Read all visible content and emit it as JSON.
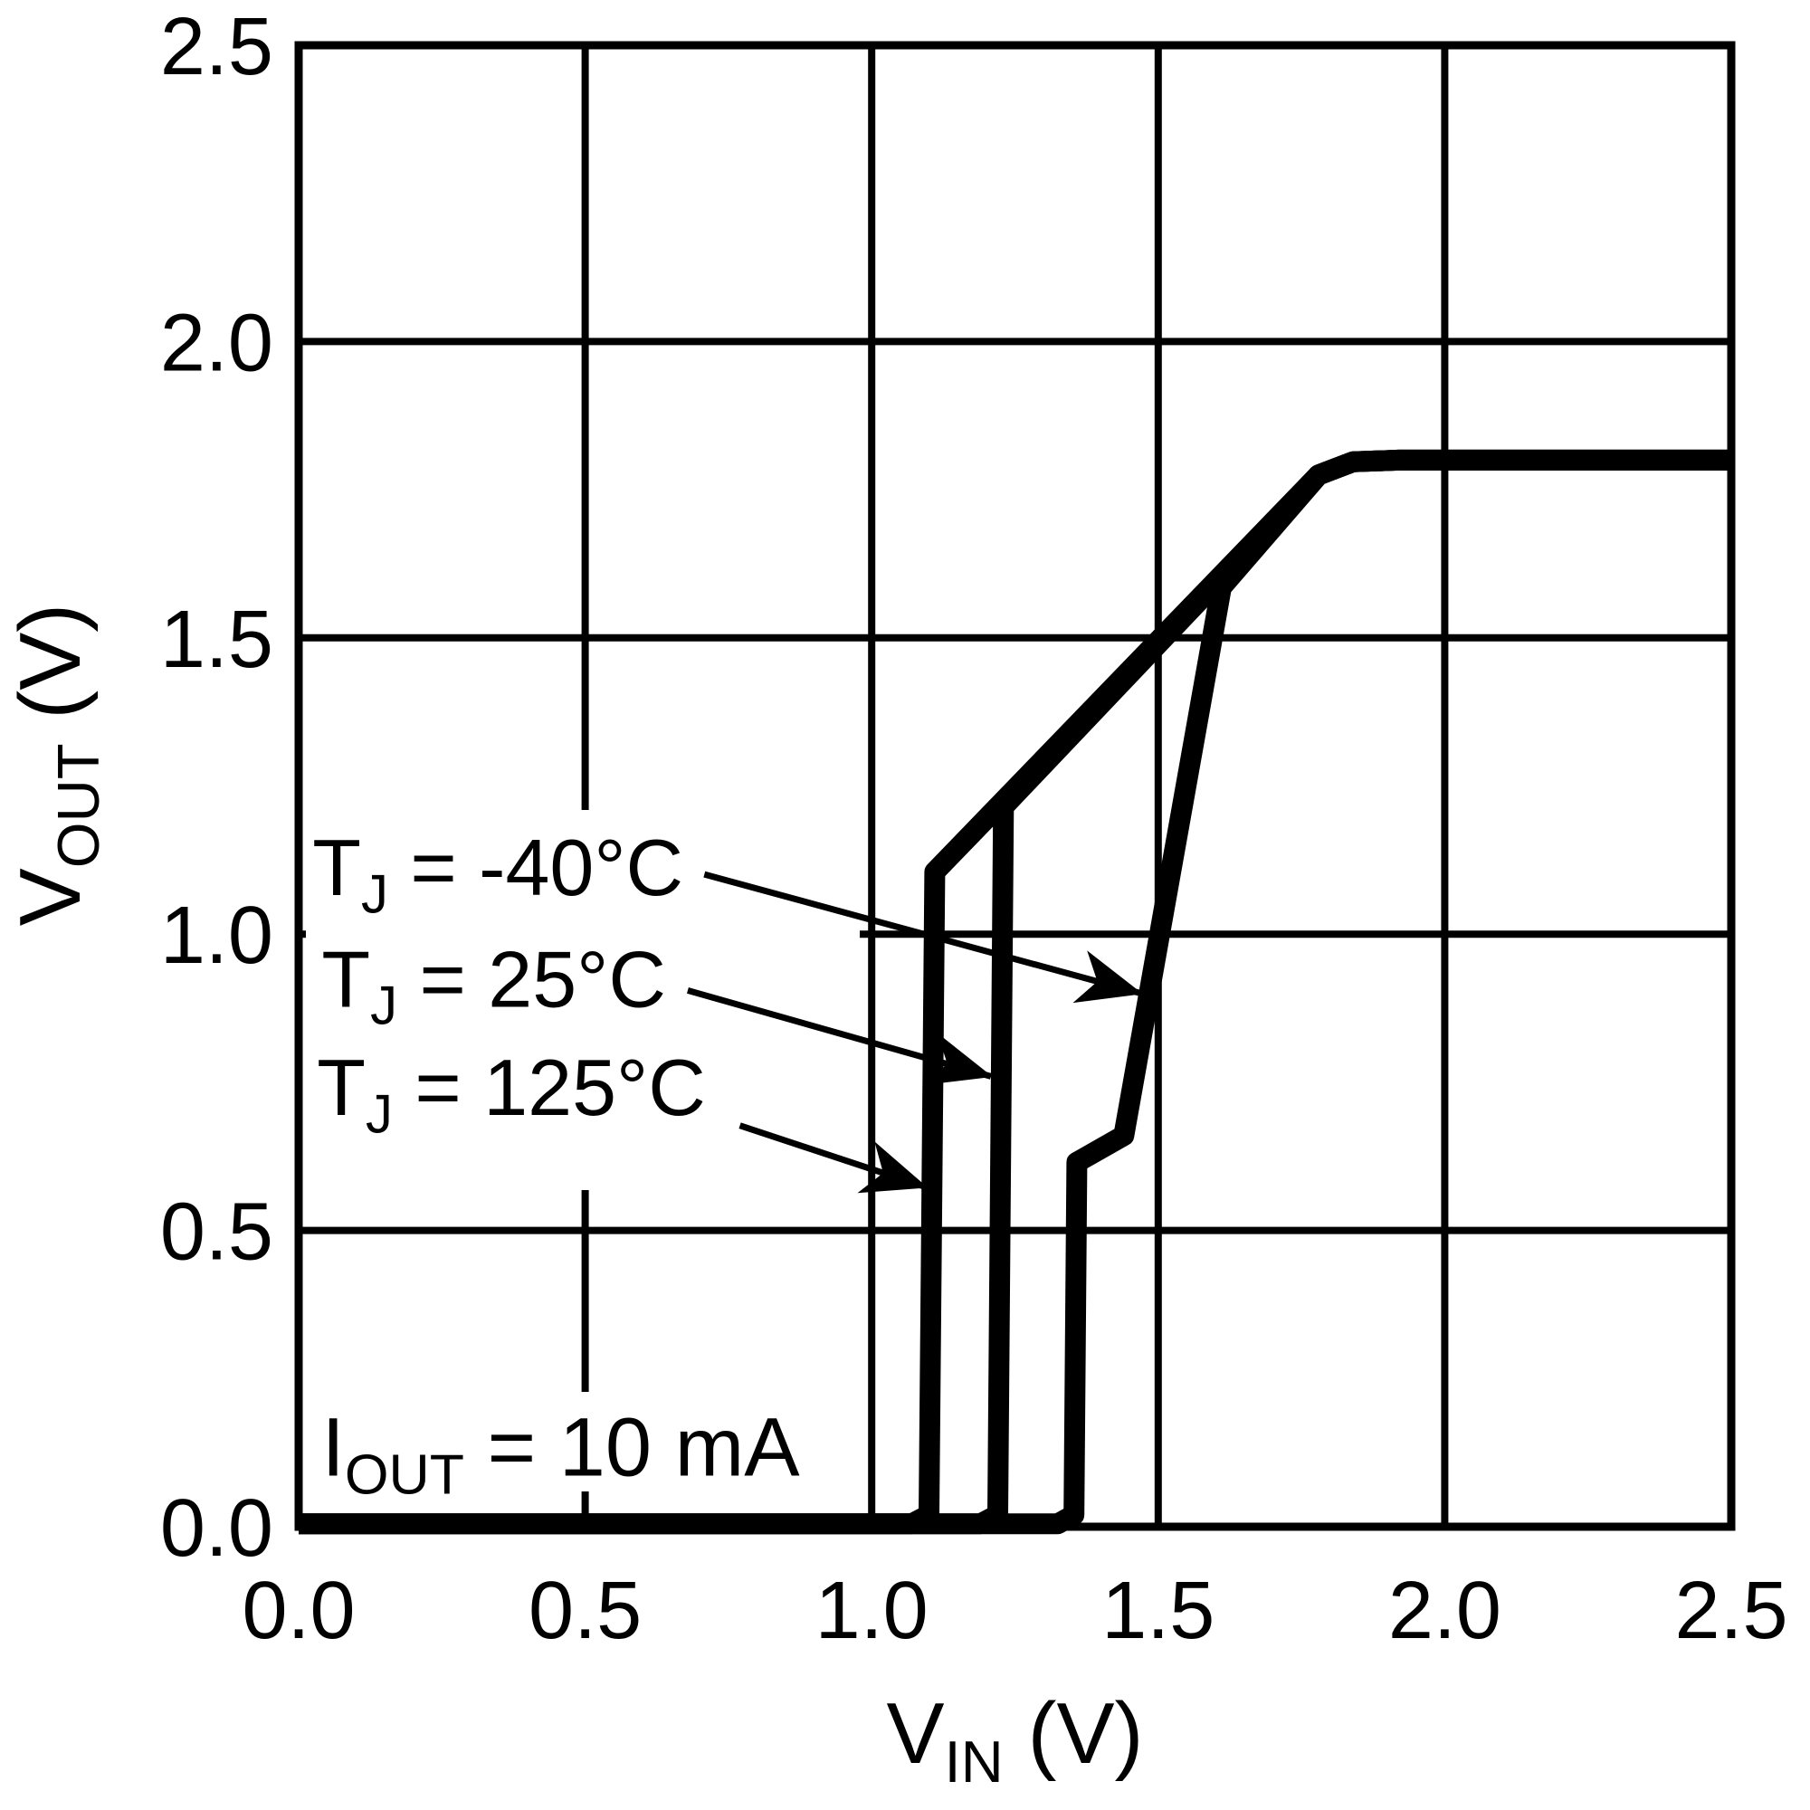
{
  "page": {
    "background": "#ffffff",
    "ink": "#000000"
  },
  "chart_data": {
    "type": "line",
    "title": "",
    "xlabel": {
      "base": "V",
      "sub": "IN",
      "rest": " (V)"
    },
    "ylabel": {
      "base": "V",
      "sub": "OUT",
      "rest": " (V)"
    },
    "xlim": [
      0,
      2.5
    ],
    "ylim": [
      0,
      2.5
    ],
    "xticks": [
      "0.0",
      "0.5",
      "1.0",
      "1.5",
      "2.0",
      "2.5"
    ],
    "yticks": [
      "0.0",
      "0.5",
      "1.0",
      "1.5",
      "2.0",
      "2.5"
    ],
    "grid": true,
    "grid_step": 0.5,
    "legend_position": "none",
    "plateau_vout": 1.8,
    "series": [
      {
        "name": "TJ = 125°C",
        "label": {
          "base": "T",
          "sub": "J",
          "rest": " = 125°C"
        },
        "startup_vin": 1.11,
        "points": [
          [
            0,
            0.005
          ],
          [
            1.07,
            0.005
          ],
          [
            1.1,
            0.02
          ],
          [
            1.11,
            1.105
          ],
          [
            1.78,
            1.775
          ],
          [
            1.84,
            1.797
          ],
          [
            1.92,
            1.8
          ],
          [
            2.5,
            1.8
          ]
        ],
        "callout": {
          "text_pos": [
            0.032,
            0.742
          ],
          "arrow_from": [
            0.77,
            0.677
          ],
          "arrow_to": [
            1.095,
            0.573
          ]
        }
      },
      {
        "name": "TJ = 25°C",
        "label": {
          "base": "T",
          "sub": "J",
          "rest": " = 25°C"
        },
        "startup_vin": 1.23,
        "points": [
          [
            0,
            0.005
          ],
          [
            1.19,
            0.005
          ],
          [
            1.22,
            0.02
          ],
          [
            1.23,
            1.215
          ],
          [
            1.78,
            1.775
          ],
          [
            1.84,
            1.797
          ],
          [
            1.92,
            1.8
          ],
          [
            2.5,
            1.8
          ]
        ],
        "callout": {
          "text_pos": [
            0.04,
            0.925
          ],
          "arrow_from": [
            0.679,
            0.905
          ],
          "arrow_to": [
            1.208,
            0.76
          ]
        }
      },
      {
        "name": "TJ = -40°C",
        "label": {
          "base": "T",
          "sub": "J",
          "rest": " = -40°C"
        },
        "startup_vin": 1.36,
        "points": [
          [
            0,
            0.005
          ],
          [
            1.325,
            0.005
          ],
          [
            1.353,
            0.02
          ],
          [
            1.358,
            0.615
          ],
          [
            1.44,
            0.66
          ],
          [
            1.61,
            1.585
          ],
          [
            1.78,
            1.775
          ],
          [
            1.84,
            1.797
          ],
          [
            1.92,
            1.8
          ],
          [
            2.5,
            1.8
          ]
        ],
        "callout": {
          "text_pos": [
            0.024,
            1.113
          ],
          "arrow_from": [
            0.708,
            1.101
          ],
          "arrow_to": [
            1.47,
            0.9
          ]
        }
      }
    ],
    "annotation": {
      "base": "I",
      "sub": "OUT",
      "rest": " = 10 mA",
      "pos": [
        0.04,
        0.14
      ]
    }
  }
}
